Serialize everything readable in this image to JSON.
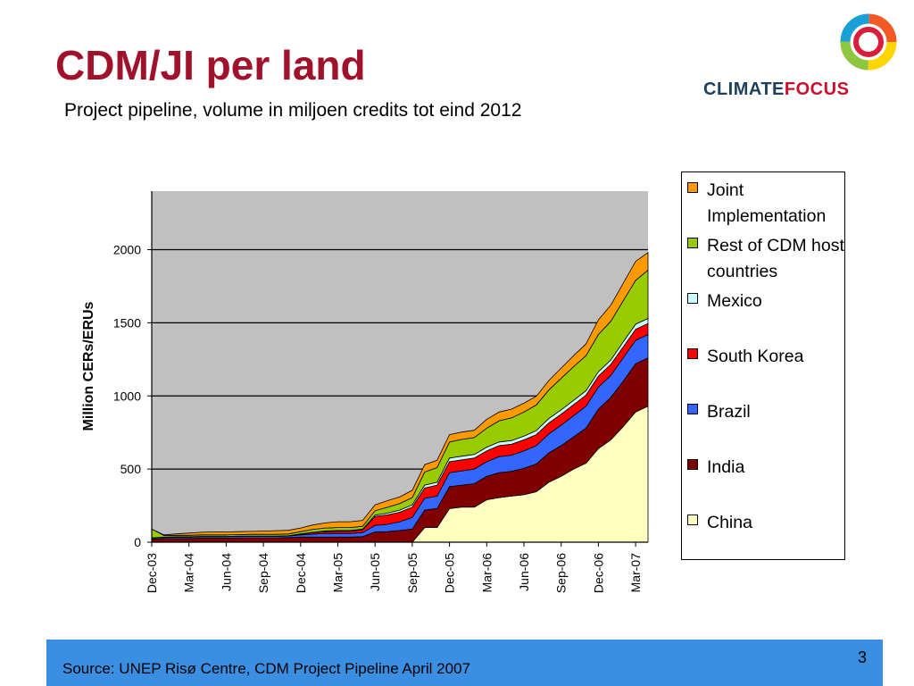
{
  "slide": {
    "title": "CDM/JI per land",
    "subtitle": "Project pipeline, volume in miljoen credits tot eind 2012",
    "brand": {
      "part1": "CLIMATE",
      "part2": "FOCUS"
    },
    "source": "Source: UNEP Risø Centre, CDM Project Pipeline April 2007",
    "page_number": "3"
  },
  "colors": {
    "title": "#a0122c",
    "plot_background": "#c0c0c0",
    "footer": "#3a8fe3"
  },
  "chart_data": {
    "type": "area",
    "stacked": true,
    "title": "",
    "xlabel": "",
    "ylabel": "Million CERs/ERUs",
    "ylim": [
      0,
      2400
    ],
    "yticks": [
      0,
      500,
      1000,
      1500,
      2000
    ],
    "grid": true,
    "legend_position": "right",
    "x": [
      "Dec-03",
      "Jan-04",
      "Feb-04",
      "Mar-04",
      "Apr-04",
      "May-04",
      "Jun-04",
      "Jul-04",
      "Aug-04",
      "Sep-04",
      "Oct-04",
      "Nov-04",
      "Dec-04",
      "Jan-05",
      "Feb-05",
      "Mar-05",
      "Apr-05",
      "May-05",
      "Jun-05",
      "Jul-05",
      "Aug-05",
      "Sep-05",
      "Oct-05",
      "Nov-05",
      "Dec-05",
      "Jan-06",
      "Feb-06",
      "Mar-06",
      "Apr-06",
      "May-06",
      "Jun-06",
      "Jul-06",
      "Aug-06",
      "Sep-06",
      "Oct-06",
      "Nov-06",
      "Dec-06",
      "Jan-07",
      "Feb-07",
      "Mar-07",
      "Apr-07"
    ],
    "xtick_labels": [
      "Dec-03",
      "Mar-04",
      "Jun-04",
      "Sep-04",
      "Dec-04",
      "Mar-05",
      "Jun-05",
      "Sep-05",
      "Dec-05",
      "Mar-06",
      "Jun-06",
      "Sep-06",
      "Dec-06",
      "Mar-07"
    ],
    "series": [
      {
        "name": "China",
        "color": "#ffffc0",
        "values": [
          0,
          0,
          0,
          0,
          0,
          0,
          0,
          0,
          0,
          0,
          0,
          0,
          0,
          0,
          0,
          0,
          0,
          0,
          0,
          0,
          0,
          0,
          100,
          100,
          230,
          240,
          240,
          290,
          305,
          315,
          325,
          345,
          410,
          450,
          500,
          540,
          640,
          700,
          790,
          890,
          930
        ]
      },
      {
        "name": "India",
        "color": "#800000",
        "values": [
          20,
          25,
          25,
          25,
          28,
          28,
          28,
          30,
          30,
          30,
          30,
          32,
          35,
          35,
          35,
          35,
          35,
          38,
          70,
          72,
          80,
          90,
          120,
          130,
          150,
          150,
          160,
          160,
          170,
          170,
          180,
          190,
          200,
          210,
          220,
          240,
          270,
          290,
          310,
          330,
          330
        ]
      },
      {
        "name": "Brazil",
        "color": "#3366ff",
        "values": [
          8,
          8,
          10,
          10,
          10,
          10,
          10,
          10,
          10,
          10,
          10,
          10,
          15,
          20,
          25,
          25,
          25,
          28,
          45,
          50,
          60,
          80,
          80,
          85,
          95,
          98,
          100,
          100,
          110,
          110,
          120,
          125,
          130,
          140,
          145,
          150,
          150,
          150,
          160,
          160,
          160
        ]
      },
      {
        "name": "South Korea",
        "color": "#ff0000",
        "values": [
          2,
          2,
          2,
          2,
          2,
          2,
          2,
          2,
          2,
          2,
          2,
          2,
          5,
          10,
          12,
          15,
          15,
          18,
          60,
          65,
          65,
          70,
          70,
          75,
          75,
          75,
          75,
          75,
          75,
          75,
          75,
          75,
          75,
          75,
          75,
          75,
          75,
          75,
          75,
          75,
          75
        ]
      },
      {
        "name": "Mexico",
        "color": "#ccffff",
        "values": [
          0,
          0,
          0,
          0,
          0,
          0,
          0,
          0,
          0,
          0,
          0,
          0,
          2,
          3,
          5,
          5,
          5,
          5,
          10,
          12,
          15,
          15,
          20,
          20,
          25,
          25,
          25,
          25,
          25,
          25,
          25,
          28,
          30,
          30,
          30,
          30,
          30,
          30,
          35,
          35,
          35
        ]
      },
      {
        "name": "Rest of CDM host countries",
        "color": "#99cc00",
        "values": [
          60,
          10,
          10,
          10,
          10,
          10,
          10,
          10,
          12,
          12,
          12,
          12,
          15,
          20,
          20,
          20,
          20,
          20,
          30,
          40,
          45,
          50,
          90,
          100,
          110,
          115,
          115,
          130,
          145,
          155,
          165,
          175,
          195,
          215,
          230,
          240,
          255,
          265,
          280,
          300,
          330
        ]
      },
      {
        "name": "Joint Implementation",
        "color": "#ff9900",
        "values": [
          0,
          5,
          10,
          15,
          18,
          20,
          20,
          20,
          20,
          22,
          25,
          25,
          25,
          30,
          35,
          40,
          40,
          40,
          40,
          45,
          45,
          50,
          50,
          50,
          50,
          50,
          50,
          60,
          60,
          60,
          60,
          60,
          65,
          70,
          75,
          80,
          100,
          110,
          120,
          130,
          120
        ]
      }
    ]
  }
}
